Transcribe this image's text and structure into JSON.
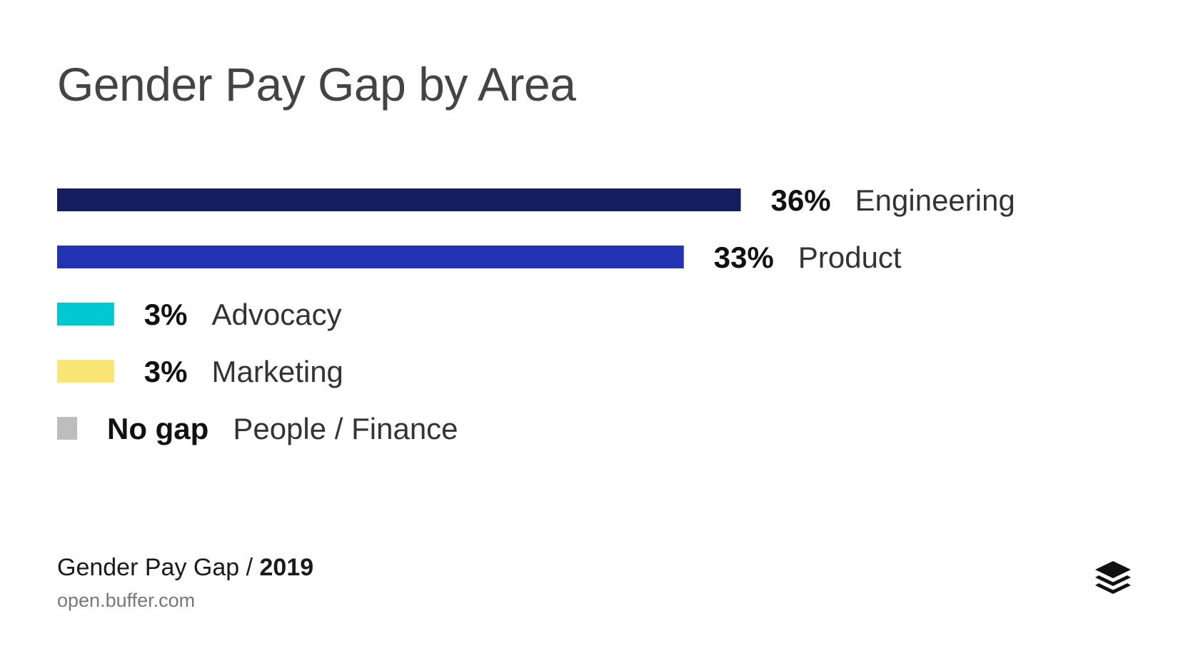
{
  "chart_data": {
    "type": "bar",
    "orientation": "horizontal",
    "title": "Gender Pay Gap by Area",
    "categories": [
      "Engineering",
      "Product",
      "Advocacy",
      "Marketing",
      "People / Finance"
    ],
    "values": [
      36,
      33,
      3,
      3,
      0
    ],
    "value_labels": [
      "36%",
      "33%",
      "3%",
      "3%",
      "No gap"
    ],
    "colors": [
      "#141f62",
      "#2233b3",
      "#00c8d0",
      "#fbe674",
      "#bdbdbd"
    ],
    "unit": "%",
    "xlabel": "",
    "ylabel": "",
    "grid": false
  },
  "footer": {
    "prefix": "Gender Pay Gap / ",
    "year": "2019",
    "url": "open.buffer.com"
  },
  "logo": {
    "icon": "buffer-stack-icon"
  }
}
